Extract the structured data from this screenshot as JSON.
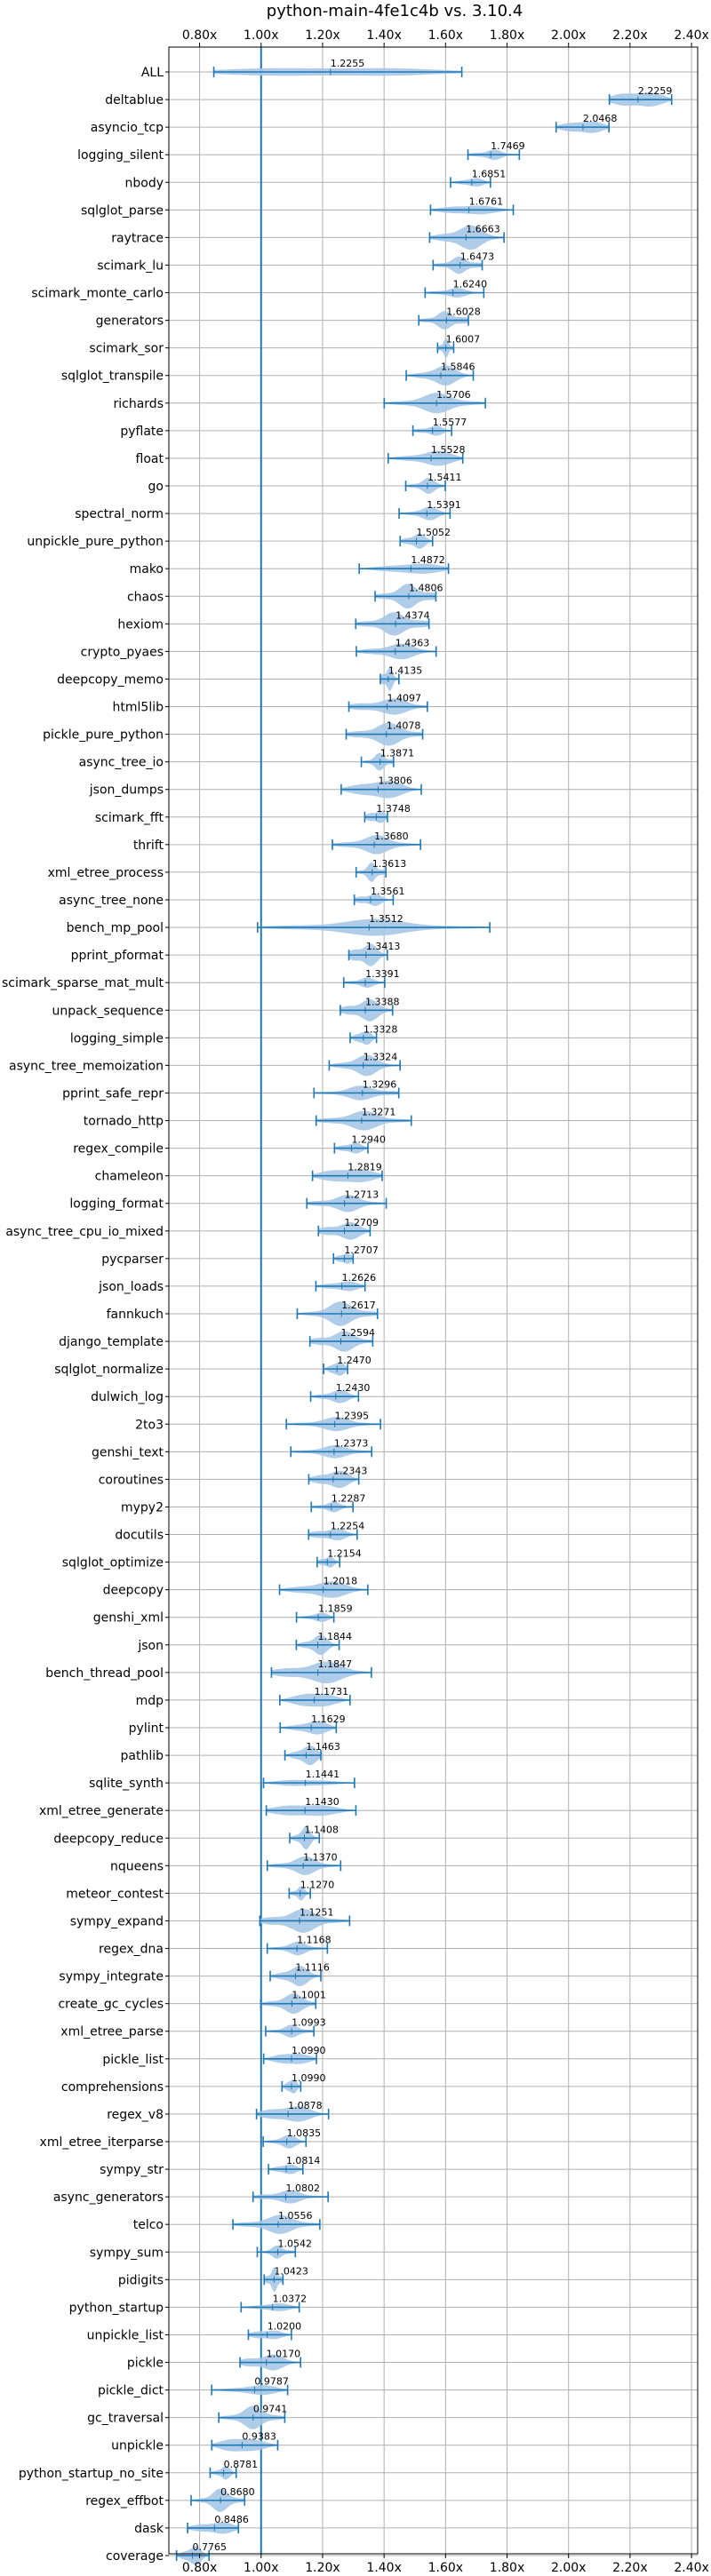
{
  "chart_data": {
    "type": "violin",
    "title": "python-main-4fe1c4b vs. 3.10.4",
    "xlim": [
      0.7,
      2.42
    ],
    "xticks": [
      0.8,
      1.0,
      1.2,
      1.4,
      1.6,
      1.8,
      2.0,
      2.2,
      2.4
    ],
    "xtick_labels": [
      "0.80x",
      "1.00x",
      "1.20x",
      "1.40x",
      "1.60x",
      "1.80x",
      "2.00x",
      "2.20x",
      "2.40x"
    ],
    "reference_line": 1.0,
    "grid": true,
    "colors": {
      "violin": "#a6c8e6",
      "whisker": "#1f77b4",
      "grid": "#b0b0b0"
    },
    "categories": [
      "ALL",
      "deltablue",
      "asyncio_tcp",
      "logging_silent",
      "nbody",
      "sqlglot_parse",
      "raytrace",
      "scimark_lu",
      "scimark_monte_carlo",
      "generators",
      "scimark_sor",
      "sqlglot_transpile",
      "richards",
      "pyflate",
      "float",
      "go",
      "spectral_norm",
      "unpickle_pure_python",
      "mako",
      "chaos",
      "hexiom",
      "crypto_pyaes",
      "deepcopy_memo",
      "html5lib",
      "pickle_pure_python",
      "async_tree_io",
      "json_dumps",
      "scimark_fft",
      "thrift",
      "xml_etree_process",
      "async_tree_none",
      "bench_mp_pool",
      "pprint_pformat",
      "scimark_sparse_mat_mult",
      "unpack_sequence",
      "logging_simple",
      "async_tree_memoization",
      "pprint_safe_repr",
      "tornado_http",
      "regex_compile",
      "chameleon",
      "logging_format",
      "async_tree_cpu_io_mixed",
      "pycparser",
      "json_loads",
      "fannkuch",
      "django_template",
      "sqlglot_normalize",
      "dulwich_log",
      "2to3",
      "genshi_text",
      "coroutines",
      "mypy2",
      "docutils",
      "sqlglot_optimize",
      "deepcopy",
      "genshi_xml",
      "json",
      "bench_thread_pool",
      "mdp",
      "pylint",
      "pathlib",
      "sqlite_synth",
      "xml_etree_generate",
      "deepcopy_reduce",
      "nqueens",
      "meteor_contest",
      "sympy_expand",
      "regex_dna",
      "sympy_integrate",
      "create_gc_cycles",
      "xml_etree_parse",
      "pickle_list",
      "comprehensions",
      "regex_v8",
      "xml_etree_iterparse",
      "sympy_str",
      "async_generators",
      "telco",
      "sympy_sum",
      "pidigits",
      "python_startup",
      "unpickle_list",
      "pickle",
      "pickle_dict",
      "gc_traversal",
      "unpickle",
      "python_startup_no_site",
      "regex_effbot",
      "dask",
      "coverage"
    ],
    "values": [
      1.2255,
      2.2259,
      2.0468,
      1.7469,
      1.6851,
      1.6761,
      1.6663,
      1.6473,
      1.624,
      1.6028,
      1.6007,
      1.5846,
      1.5706,
      1.5577,
      1.5528,
      1.5411,
      1.5391,
      1.5052,
      1.4872,
      1.4806,
      1.4374,
      1.4363,
      1.4135,
      1.4097,
      1.4078,
      1.3871,
      1.3806,
      1.3748,
      1.368,
      1.3613,
      1.3561,
      1.3512,
      1.3413,
      1.3391,
      1.3388,
      1.3328,
      1.3324,
      1.3296,
      1.3271,
      1.294,
      1.2819,
      1.2713,
      1.2709,
      1.2707,
      1.2626,
      1.2617,
      1.2594,
      1.247,
      1.243,
      1.2395,
      1.2373,
      1.2343,
      1.2287,
      1.2254,
      1.2154,
      1.2018,
      1.1859,
      1.1844,
      1.1847,
      1.1731,
      1.1629,
      1.1463,
      1.1441,
      1.143,
      1.1408,
      1.137,
      1.127,
      1.1251,
      1.1168,
      1.1116,
      1.1001,
      1.0993,
      1.099,
      1.099,
      1.0878,
      1.0835,
      1.0814,
      1.0802,
      1.0556,
      1.0542,
      1.0423,
      1.0372,
      1.02,
      1.017,
      0.9787,
      0.9741,
      0.9383,
      0.8781,
      0.868,
      0.8486,
      0.7765
    ],
    "value_labels": [
      "1.2255",
      "2.2259",
      "2.0468",
      "1.7469",
      "1.6851",
      "1.6761",
      "1.6663",
      "1.6473",
      "1.6240",
      "1.6028",
      "1.6007",
      "1.5846",
      "1.5706",
      "1.5577",
      "1.5528",
      "1.5411",
      "1.5391",
      "1.5052",
      "1.4872",
      "1.4806",
      "1.4374",
      "1.4363",
      "1.4135",
      "1.4097",
      "1.4078",
      "1.3871",
      "1.3806",
      "1.3748",
      "1.3680",
      "1.3613",
      "1.3561",
      "1.3512",
      "1.3413",
      "1.3391",
      "1.3388",
      "1.3328",
      "1.3324",
      "1.3296",
      "1.3271",
      "1.2940",
      "1.2819",
      "1.2713",
      "1.2709",
      "1.2707",
      "1.2626",
      "1.2617",
      "1.2594",
      "1.2470",
      "1.2430",
      "1.2395",
      "1.2373",
      "1.2343",
      "1.2287",
      "1.2254",
      "1.2154",
      "1.2018",
      "1.1859",
      "1.1844",
      "1.1847",
      "1.1731",
      "1.1629",
      "1.1463",
      "1.1441",
      "1.1430",
      "1.1408",
      "1.1370",
      "1.1270",
      "1.1251",
      "1.1168",
      "1.1116",
      "1.1001",
      "1.0993",
      "1.0990",
      "1.0990",
      "1.0878",
      "1.0835",
      "1.0814",
      "1.0802",
      "1.0556",
      "1.0542",
      "1.0423",
      "1.0372",
      "1.0200",
      "1.0170",
      "0.9787",
      "0.9741",
      "0.9383",
      "0.8781",
      "0.8680",
      "0.8486",
      "0.7765"
    ]
  }
}
